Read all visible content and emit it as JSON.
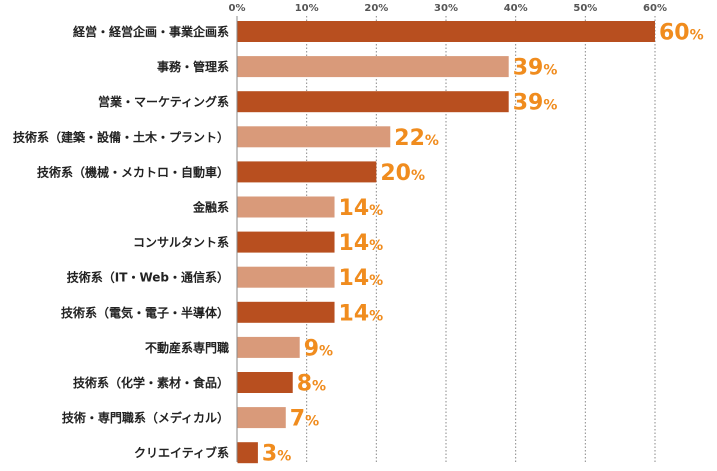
{
  "chart_data": {
    "type": "bar",
    "orientation": "horizontal",
    "title": "",
    "xlabel": "",
    "ylabel": "",
    "xlim": [
      0,
      60
    ],
    "ticks": [
      0,
      10,
      20,
      30,
      40,
      50,
      60
    ],
    "tick_labels": [
      "0%",
      "10%",
      "20%",
      "30%",
      "40%",
      "50%",
      "60%"
    ],
    "grid": true,
    "categories": [
      "経営・経営企画・事業企画系",
      "事務・管理系",
      "営業・マーケティング系",
      "技術系（建築・設備・土木・プラント）",
      "技術系（機械・メカトロ・自動車）",
      "金融系",
      "コンサルタント系",
      "技術系（IT・Web・通信系）",
      "技術系（電気・電子・半導体）",
      "不動産系専門職",
      "技術系（化学・素材・食品）",
      "技術・専門職系（メディカル）",
      "クリエイティブ系"
    ],
    "values": [
      60,
      39,
      39,
      22,
      20,
      14,
      14,
      14,
      14,
      9,
      8,
      7,
      3
    ],
    "value_unit": "%",
    "colors": {
      "dark_bar": "#b84f1f",
      "light_bar": "#d99a7a",
      "value_label": "#f08c1e",
      "grid": "#8a8a8a",
      "label": "#222222"
    }
  }
}
